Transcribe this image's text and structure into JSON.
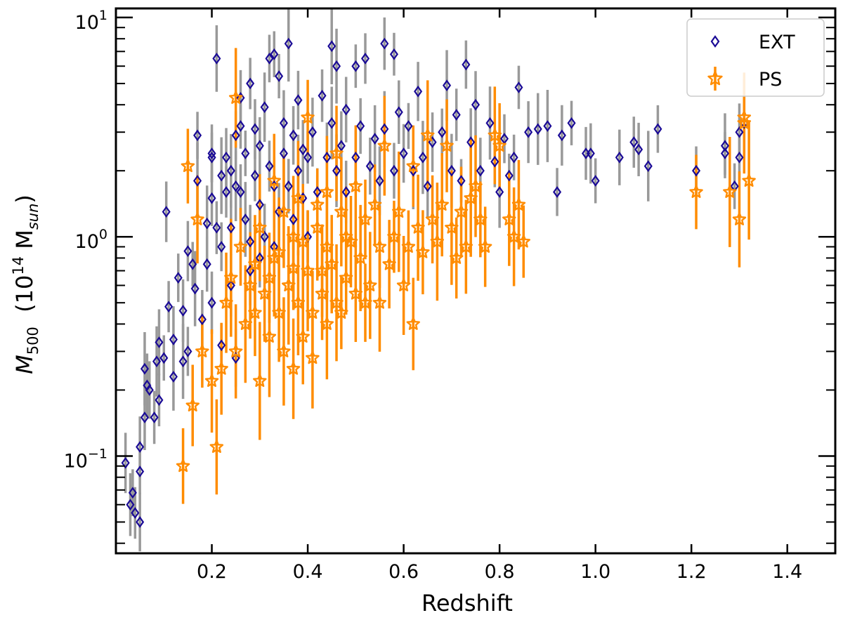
{
  "chart_data": {
    "type": "scatter",
    "xlabel": "Redshift",
    "ylabel": {
      "main": "M",
      "sub": "500",
      "unit_pre": "(10",
      "unit_exp": "14",
      "unit_mid": " M",
      "unit_sub": "sun",
      "unit_post": ")"
    },
    "xlim": [
      0.0,
      1.5
    ],
    "ylim": [
      0.036,
      11.0
    ],
    "yscale": "log",
    "x_ticks": [
      0.2,
      0.4,
      0.6,
      0.8,
      1.0,
      1.2,
      1.4
    ],
    "x_tick_labels": [
      "0.2",
      "0.4",
      "0.6",
      "0.8",
      "1.0",
      "1.2",
      "1.4"
    ],
    "y_major_ticks": [
      {
        "value": 0.1,
        "base": "10",
        "exp": "−1"
      },
      {
        "value": 1.0,
        "base": "10",
        "exp": "0"
      },
      {
        "value": 10.0,
        "base": "10",
        "exp": "1"
      }
    ],
    "y_minor_ticks": [
      0.04,
      0.05,
      0.06,
      0.07,
      0.08,
      0.09,
      0.2,
      0.3,
      0.4,
      0.5,
      0.6,
      0.7,
      0.8,
      0.9,
      2,
      3,
      4,
      5,
      6,
      7,
      8,
      9
    ],
    "legend_position": "top-right",
    "series": [
      {
        "name": "EXT",
        "marker": "diamond",
        "color": "#1a0a96",
        "error_color": "#999999",
        "points": [
          [
            0.02,
            0.093
          ],
          [
            0.03,
            0.06
          ],
          [
            0.035,
            0.068
          ],
          [
            0.04,
            0.055
          ],
          [
            0.05,
            0.05
          ],
          [
            0.05,
            0.11
          ],
          [
            0.05,
            0.085
          ],
          [
            0.06,
            0.25
          ],
          [
            0.065,
            0.21
          ],
          [
            0.07,
            0.2
          ],
          [
            0.08,
            0.15
          ],
          [
            0.085,
            0.27
          ],
          [
            0.09,
            0.33
          ],
          [
            0.1,
            0.28
          ],
          [
            0.105,
            1.3
          ],
          [
            0.11,
            0.48
          ],
          [
            0.12,
            0.34
          ],
          [
            0.13,
            0.65
          ],
          [
            0.14,
            0.46
          ],
          [
            0.15,
            0.86
          ],
          [
            0.15,
            0.3
          ],
          [
            0.16,
            0.75
          ],
          [
            0.165,
            0.58
          ],
          [
            0.17,
            1.8
          ],
          [
            0.17,
            2.9
          ],
          [
            0.18,
            0.42
          ],
          [
            0.19,
            1.15
          ],
          [
            0.2,
            2.3
          ],
          [
            0.2,
            2.4
          ],
          [
            0.2,
            0.5
          ],
          [
            0.21,
            6.5
          ],
          [
            0.21,
            1.1
          ],
          [
            0.22,
            0.9
          ],
          [
            0.22,
            1.9
          ],
          [
            0.23,
            2.3
          ],
          [
            0.23,
            1.6
          ],
          [
            0.24,
            0.6
          ],
          [
            0.24,
            1.1
          ],
          [
            0.25,
            2.9
          ],
          [
            0.25,
            1.7
          ],
          [
            0.26,
            4.3
          ],
          [
            0.26,
            1.6
          ],
          [
            0.27,
            2.4
          ],
          [
            0.27,
            1.2
          ],
          [
            0.28,
            5.0
          ],
          [
            0.28,
            0.95
          ],
          [
            0.29,
            3.1
          ],
          [
            0.29,
            1.9
          ],
          [
            0.3,
            1.4
          ],
          [
            0.3,
            2.6
          ],
          [
            0.31,
            3.9
          ],
          [
            0.31,
            1.0
          ],
          [
            0.32,
            6.5
          ],
          [
            0.32,
            2.1
          ],
          [
            0.33,
            1.7
          ],
          [
            0.33,
            6.8
          ],
          [
            0.34,
            5.4
          ],
          [
            0.34,
            1.3
          ],
          [
            0.35,
            2.4
          ],
          [
            0.35,
            3.3
          ],
          [
            0.36,
            7.6
          ],
          [
            0.36,
            1.7
          ],
          [
            0.37,
            2.9
          ],
          [
            0.37,
            1.2
          ],
          [
            0.38,
            4.2
          ],
          [
            0.38,
            2.0
          ],
          [
            0.39,
            2.5
          ],
          [
            0.39,
            1.5
          ],
          [
            0.4,
            2.3
          ],
          [
            0.4,
            1.0
          ],
          [
            0.41,
            3.0
          ],
          [
            0.42,
            1.6
          ],
          [
            0.43,
            4.4
          ],
          [
            0.44,
            2.3
          ],
          [
            0.45,
            3.3
          ],
          [
            0.45,
            7.4
          ],
          [
            0.46,
            6.0
          ],
          [
            0.46,
            2.0
          ],
          [
            0.47,
            2.6
          ],
          [
            0.48,
            3.8
          ],
          [
            0.48,
            1.6
          ],
          [
            0.5,
            6.0
          ],
          [
            0.5,
            2.3
          ],
          [
            0.51,
            3.2
          ],
          [
            0.52,
            6.5
          ],
          [
            0.53,
            2.1
          ],
          [
            0.54,
            2.8
          ],
          [
            0.55,
            1.8
          ],
          [
            0.56,
            7.6
          ],
          [
            0.56,
            3.1
          ],
          [
            0.58,
            6.8
          ],
          [
            0.58,
            2.0
          ],
          [
            0.59,
            3.7
          ],
          [
            0.6,
            2.4
          ],
          [
            0.61,
            3.2
          ],
          [
            0.62,
            2.0
          ],
          [
            0.63,
            4.6
          ],
          [
            0.64,
            2.3
          ],
          [
            0.65,
            1.7
          ],
          [
            0.66,
            2.7
          ],
          [
            0.68,
            3.0
          ],
          [
            0.69,
            4.9
          ],
          [
            0.7,
            2.0
          ],
          [
            0.71,
            3.6
          ],
          [
            0.72,
            1.8
          ],
          [
            0.73,
            6.1
          ],
          [
            0.74,
            2.7
          ],
          [
            0.75,
            4.0
          ],
          [
            0.76,
            2.0
          ],
          [
            0.78,
            3.3
          ],
          [
            0.79,
            2.2
          ],
          [
            0.8,
            1.6
          ],
          [
            0.81,
            2.8
          ],
          [
            0.82,
            1.9
          ],
          [
            0.83,
            2.3
          ],
          [
            0.84,
            4.8
          ],
          [
            0.86,
            3.0
          ],
          [
            0.88,
            3.1
          ],
          [
            0.9,
            3.2
          ],
          [
            0.92,
            1.6
          ],
          [
            0.93,
            2.9
          ],
          [
            0.95,
            3.3
          ],
          [
            0.98,
            2.4
          ],
          [
            0.99,
            2.4
          ],
          [
            1.0,
            1.8
          ],
          [
            1.05,
            2.3
          ],
          [
            1.08,
            2.7
          ],
          [
            1.09,
            2.5
          ],
          [
            1.11,
            2.1
          ],
          [
            1.13,
            3.1
          ],
          [
            1.21,
            2.0
          ],
          [
            1.27,
            2.4
          ],
          [
            1.27,
            2.6
          ],
          [
            1.29,
            1.7
          ],
          [
            1.3,
            3.0
          ],
          [
            1.3,
            2.3
          ],
          [
            1.31,
            3.3
          ],
          [
            0.25,
            0.28
          ],
          [
            0.22,
            0.32
          ],
          [
            0.28,
            0.7
          ],
          [
            0.3,
            0.8
          ],
          [
            0.33,
            0.9
          ],
          [
            0.19,
            0.75
          ],
          [
            0.14,
            0.27
          ],
          [
            0.12,
            0.23
          ],
          [
            0.06,
            0.15
          ],
          [
            0.09,
            0.18
          ],
          [
            0.2,
            1.5
          ],
          [
            0.26,
            3.2
          ],
          [
            0.24,
            2.0
          ]
        ]
      },
      {
        "name": "PS",
        "marker": "star",
        "color": "#ff8c00",
        "error_color": "#ff8c00",
        "points": [
          [
            0.14,
            0.09
          ],
          [
            0.15,
            2.1
          ],
          [
            0.16,
            0.17
          ],
          [
            0.17,
            1.2
          ],
          [
            0.18,
            0.3
          ],
          [
            0.2,
            0.22
          ],
          [
            0.21,
            0.11
          ],
          [
            0.22,
            0.25
          ],
          [
            0.23,
            0.5
          ],
          [
            0.24,
            0.65
          ],
          [
            0.25,
            4.3
          ],
          [
            0.25,
            0.3
          ],
          [
            0.26,
            0.9
          ],
          [
            0.27,
            0.4
          ],
          [
            0.28,
            0.6
          ],
          [
            0.29,
            0.75
          ],
          [
            0.3,
            0.22
          ],
          [
            0.3,
            1.1
          ],
          [
            0.31,
            0.55
          ],
          [
            0.32,
            0.35
          ],
          [
            0.33,
            0.8
          ],
          [
            0.33,
            1.8
          ],
          [
            0.34,
            0.45
          ],
          [
            0.35,
            0.3
          ],
          [
            0.35,
            1.3
          ],
          [
            0.36,
            0.6
          ],
          [
            0.37,
            0.25
          ],
          [
            0.37,
            1.0
          ],
          [
            0.38,
            0.5
          ],
          [
            0.38,
            1.5
          ],
          [
            0.39,
            0.35
          ],
          [
            0.4,
            3.5
          ],
          [
            0.4,
            0.7
          ],
          [
            0.41,
            0.28
          ],
          [
            0.42,
            1.1
          ],
          [
            0.43,
            0.55
          ],
          [
            0.44,
            0.4
          ],
          [
            0.44,
            1.6
          ],
          [
            0.45,
            0.75
          ],
          [
            0.46,
            2.4
          ],
          [
            0.46,
            0.5
          ],
          [
            0.47,
            1.3
          ],
          [
            0.48,
            0.65
          ],
          [
            0.49,
            0.95
          ],
          [
            0.5,
            0.55
          ],
          [
            0.5,
            1.7
          ],
          [
            0.51,
            0.8
          ],
          [
            0.52,
            1.2
          ],
          [
            0.53,
            0.6
          ],
          [
            0.54,
            1.4
          ],
          [
            0.55,
            0.9
          ],
          [
            0.56,
            2.6
          ],
          [
            0.57,
            0.75
          ],
          [
            0.58,
            1.0
          ],
          [
            0.59,
            1.3
          ],
          [
            0.6,
            0.6
          ],
          [
            0.61,
            0.9
          ],
          [
            0.62,
            0.4
          ],
          [
            0.62,
            2.1
          ],
          [
            0.63,
            1.1
          ],
          [
            0.64,
            0.85
          ],
          [
            0.65,
            2.9
          ],
          [
            0.66,
            1.2
          ],
          [
            0.67,
            0.95
          ],
          [
            0.68,
            1.4
          ],
          [
            0.69,
            2.6
          ],
          [
            0.7,
            1.1
          ],
          [
            0.71,
            0.8
          ],
          [
            0.72,
            1.3
          ],
          [
            0.73,
            0.9
          ],
          [
            0.74,
            1.5
          ],
          [
            0.75,
            1.7
          ],
          [
            0.76,
            1.2
          ],
          [
            0.77,
            0.9
          ],
          [
            0.79,
            2.9
          ],
          [
            0.8,
            2.6
          ],
          [
            0.82,
            1.2
          ],
          [
            0.83,
            1.0
          ],
          [
            0.84,
            1.4
          ],
          [
            0.85,
            0.95
          ],
          [
            1.21,
            1.6
          ],
          [
            1.28,
            1.6
          ],
          [
            1.3,
            1.2
          ],
          [
            1.31,
            3.3
          ],
          [
            1.32,
            1.8
          ],
          [
            1.31,
            3.5
          ],
          [
            0.36,
            0.6
          ],
          [
            0.41,
            0.45
          ],
          [
            0.43,
            0.7
          ],
          [
            0.47,
            0.45
          ],
          [
            0.52,
            0.5
          ],
          [
            0.34,
            0.85
          ],
          [
            0.39,
            0.95
          ],
          [
            0.42,
            1.4
          ],
          [
            0.48,
            1.0
          ],
          [
            0.29,
            0.45
          ],
          [
            0.32,
            0.65
          ],
          [
            0.37,
            0.72
          ],
          [
            0.44,
            0.9
          ],
          [
            0.55,
            0.5
          ]
        ]
      }
    ]
  }
}
